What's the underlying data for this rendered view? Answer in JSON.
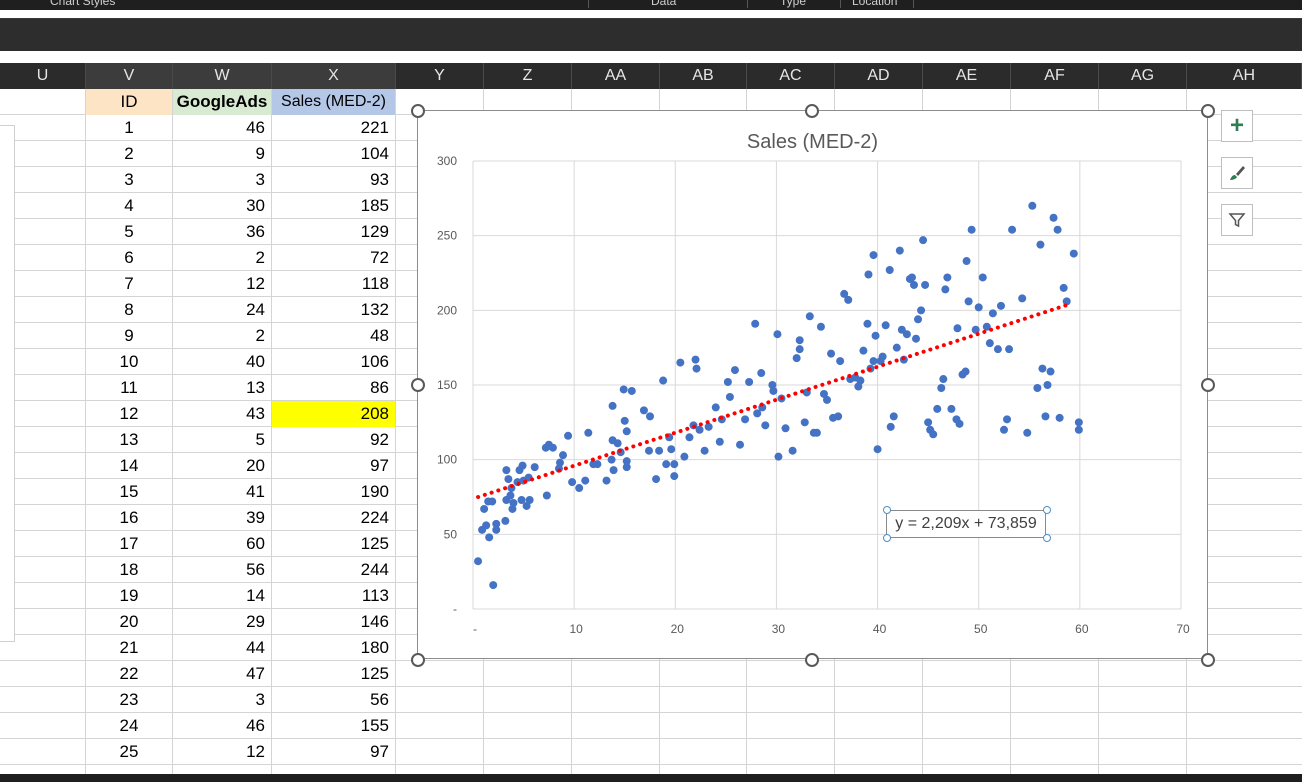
{
  "ribbon": {
    "groups": [
      "Chart Styles",
      "Data",
      "Type",
      "Location"
    ]
  },
  "columns": [
    "U",
    "V",
    "W",
    "X",
    "Y",
    "Z",
    "AA",
    "AB",
    "AC",
    "AD",
    "AE",
    "AF",
    "AG",
    "AH"
  ],
  "table": {
    "headers": {
      "id": "ID",
      "google": "GoogleAds",
      "sales": "Sales (MED-2)"
    },
    "header_colors": {
      "id": "#fce4c4",
      "google": "#d9ead3",
      "sales": "#b4c7e7"
    },
    "highlight_color": "#ffff00",
    "rows": [
      {
        "id": "1",
        "google": "46",
        "sales": "221"
      },
      {
        "id": "2",
        "google": "9",
        "sales": "104"
      },
      {
        "id": "3",
        "google": "3",
        "sales": "93"
      },
      {
        "id": "4",
        "google": "30",
        "sales": "185"
      },
      {
        "id": "5",
        "google": "36",
        "sales": "129"
      },
      {
        "id": "6",
        "google": "2",
        "sales": "72"
      },
      {
        "id": "7",
        "google": "12",
        "sales": "118"
      },
      {
        "id": "8",
        "google": "24",
        "sales": "132"
      },
      {
        "id": "9",
        "google": "2",
        "sales": "48"
      },
      {
        "id": "10",
        "google": "40",
        "sales": "106"
      },
      {
        "id": "11",
        "google": "13",
        "sales": "86"
      },
      {
        "id": "12",
        "google": "43",
        "sales": "208",
        "highlight": true
      },
      {
        "id": "13",
        "google": "5",
        "sales": "92"
      },
      {
        "id": "14",
        "google": "20",
        "sales": "97"
      },
      {
        "id": "15",
        "google": "41",
        "sales": "190"
      },
      {
        "id": "16",
        "google": "39",
        "sales": "224"
      },
      {
        "id": "17",
        "google": "60",
        "sales": "125"
      },
      {
        "id": "18",
        "google": "56",
        "sales": "244"
      },
      {
        "id": "19",
        "google": "14",
        "sales": "113"
      },
      {
        "id": "20",
        "google": "29",
        "sales": "146"
      },
      {
        "id": "21",
        "google": "44",
        "sales": "180"
      },
      {
        "id": "22",
        "google": "47",
        "sales": "125"
      },
      {
        "id": "23",
        "google": "3",
        "sales": "56"
      },
      {
        "id": "24",
        "google": "46",
        "sales": "155"
      },
      {
        "id": "25",
        "google": "12",
        "sales": "97"
      }
    ]
  },
  "chart_data": {
    "type": "scatter",
    "title": "Sales (MED-2)",
    "xlim": [
      0,
      70
    ],
    "ylim": [
      0,
      300
    ],
    "x_ticks": [
      "-",
      "10",
      "20",
      "30",
      "40",
      "50",
      "60",
      "70"
    ],
    "y_ticks": [
      "-",
      "50",
      "100",
      "150",
      "200",
      "250",
      "300"
    ],
    "grid": true,
    "point_color": "#4472c4",
    "trendline": {
      "slope": 2.209,
      "intercept": 73.859,
      "x_range": [
        0.5,
        59
      ],
      "color": "#ff0000",
      "style": "dotted",
      "label": "y = 2,209x + 73,859"
    },
    "points": [
      [
        0.5,
        32
      ],
      [
        0.9,
        53
      ],
      [
        1.3,
        56
      ],
      [
        1.6,
        48
      ],
      [
        1.1,
        67
      ],
      [
        2.0,
        16
      ],
      [
        1.5,
        72
      ],
      [
        1.9,
        72
      ],
      [
        2.3,
        57
      ],
      [
        2.3,
        53
      ],
      [
        3.2,
        59
      ],
      [
        3.3,
        73
      ],
      [
        3.5,
        87
      ],
      [
        3.3,
        93
      ],
      [
        3.8,
        81
      ],
      [
        3.7,
        76
      ],
      [
        3.9,
        67
      ],
      [
        4.0,
        71
      ],
      [
        4.4,
        85
      ],
      [
        4.6,
        93
      ],
      [
        4.9,
        96
      ],
      [
        5.0,
        86
      ],
      [
        4.8,
        73
      ],
      [
        5.3,
        69
      ],
      [
        5.6,
        73
      ],
      [
        6.1,
        95
      ],
      [
        5.5,
        88
      ],
      [
        7.3,
        76
      ],
      [
        7.2,
        108
      ],
      [
        7.5,
        110
      ],
      [
        7.9,
        108
      ],
      [
        8.5,
        94
      ],
      [
        8.6,
        98
      ],
      [
        8.9,
        103
      ],
      [
        9.4,
        116
      ],
      [
        9.8,
        85
      ],
      [
        10.5,
        81
      ],
      [
        11.1,
        86
      ],
      [
        11.4,
        118
      ],
      [
        11.9,
        97
      ],
      [
        12.3,
        97
      ],
      [
        13.2,
        86
      ],
      [
        13.7,
        100
      ],
      [
        13.9,
        93
      ],
      [
        13.8,
        113
      ],
      [
        13.8,
        136
      ],
      [
        14.3,
        111
      ],
      [
        14.6,
        105
      ],
      [
        14.9,
        147
      ],
      [
        15.0,
        126
      ],
      [
        15.2,
        119
      ],
      [
        15.2,
        95
      ],
      [
        15.2,
        99
      ],
      [
        15.7,
        146
      ],
      [
        16.9,
        133
      ],
      [
        17.5,
        129
      ],
      [
        17.4,
        106
      ],
      [
        18.1,
        87
      ],
      [
        18.4,
        106
      ],
      [
        18.8,
        153
      ],
      [
        19.1,
        97
      ],
      [
        19.4,
        115
      ],
      [
        19.6,
        107
      ],
      [
        19.9,
        97
      ],
      [
        19.9,
        89
      ],
      [
        20.5,
        165
      ],
      [
        20.9,
        102
      ],
      [
        21.4,
        115
      ],
      [
        21.8,
        123
      ],
      [
        22.0,
        167
      ],
      [
        22.1,
        161
      ],
      [
        22.4,
        120
      ],
      [
        22.9,
        106
      ],
      [
        23.3,
        122
      ],
      [
        24.0,
        135
      ],
      [
        24.4,
        112
      ],
      [
        24.6,
        127
      ],
      [
        25.2,
        152
      ],
      [
        25.4,
        142
      ],
      [
        25.9,
        160
      ],
      [
        26.4,
        110
      ],
      [
        26.9,
        127
      ],
      [
        27.3,
        152
      ],
      [
        27.9,
        191
      ],
      [
        28.1,
        131
      ],
      [
        28.5,
        158
      ],
      [
        28.6,
        135
      ],
      [
        28.9,
        123
      ],
      [
        29.6,
        150
      ],
      [
        29.7,
        146
      ],
      [
        30.1,
        184
      ],
      [
        30.2,
        102
      ],
      [
        30.5,
        141
      ],
      [
        30.9,
        121
      ],
      [
        31.6,
        106
      ],
      [
        32.0,
        168
      ],
      [
        32.3,
        180
      ],
      [
        32.3,
        174
      ],
      [
        32.8,
        125
      ],
      [
        33.0,
        145
      ],
      [
        33.3,
        196
      ],
      [
        33.7,
        118
      ],
      [
        34.0,
        118
      ],
      [
        34.4,
        189
      ],
      [
        34.7,
        144
      ],
      [
        35.0,
        140
      ],
      [
        35.4,
        171
      ],
      [
        35.6,
        128
      ],
      [
        36.1,
        129
      ],
      [
        36.3,
        166
      ],
      [
        36.7,
        211
      ],
      [
        37.1,
        207
      ],
      [
        37.3,
        154
      ],
      [
        37.8,
        155
      ],
      [
        38.1,
        149
      ],
      [
        38.3,
        153
      ],
      [
        38.6,
        173
      ],
      [
        39.0,
        191
      ],
      [
        39.1,
        224
      ],
      [
        39.3,
        161
      ],
      [
        39.6,
        237
      ],
      [
        39.6,
        166
      ],
      [
        39.8,
        183
      ],
      [
        40.0,
        107
      ],
      [
        40.3,
        166
      ],
      [
        40.5,
        169
      ],
      [
        40.8,
        190
      ],
      [
        41.2,
        227
      ],
      [
        41.3,
        122
      ],
      [
        41.6,
        129
      ],
      [
        41.9,
        175
      ],
      [
        42.2,
        240
      ],
      [
        42.4,
        187
      ],
      [
        42.6,
        167
      ],
      [
        42.9,
        184
      ],
      [
        43.2,
        221
      ],
      [
        43.4,
        222
      ],
      [
        43.6,
        217
      ],
      [
        43.8,
        181
      ],
      [
        44.0,
        194
      ],
      [
        44.3,
        200
      ],
      [
        44.5,
        247
      ],
      [
        44.7,
        217
      ],
      [
        45.0,
        125
      ],
      [
        45.2,
        120
      ],
      [
        45.5,
        117
      ],
      [
        45.9,
        134
      ],
      [
        46.3,
        148
      ],
      [
        46.5,
        154
      ],
      [
        46.7,
        214
      ],
      [
        46.9,
        222
      ],
      [
        47.3,
        134
      ],
      [
        47.8,
        127
      ],
      [
        47.9,
        188
      ],
      [
        48.1,
        124
      ],
      [
        48.4,
        157
      ],
      [
        48.7,
        159
      ],
      [
        48.8,
        233
      ],
      [
        49.0,
        206
      ],
      [
        49.3,
        254
      ],
      [
        49.7,
        187
      ],
      [
        50.0,
        202
      ],
      [
        50.4,
        222
      ],
      [
        50.8,
        189
      ],
      [
        51.1,
        178
      ],
      [
        51.4,
        198
      ],
      [
        51.9,
        174
      ],
      [
        52.2,
        203
      ],
      [
        52.5,
        120
      ],
      [
        52.8,
        127
      ],
      [
        53.0,
        174
      ],
      [
        53.3,
        254
      ],
      [
        54.3,
        208
      ],
      [
        54.8,
        118
      ],
      [
        55.3,
        270
      ],
      [
        55.8,
        148
      ],
      [
        56.1,
        244
      ],
      [
        56.3,
        161
      ],
      [
        56.6,
        129
      ],
      [
        56.8,
        150
      ],
      [
        57.1,
        159
      ],
      [
        57.4,
        262
      ],
      [
        57.8,
        254
      ],
      [
        58.0,
        128
      ],
      [
        58.4,
        215
      ],
      [
        58.7,
        206
      ],
      [
        59.4,
        238
      ],
      [
        59.9,
        125
      ],
      [
        59.9,
        120
      ]
    ]
  }
}
